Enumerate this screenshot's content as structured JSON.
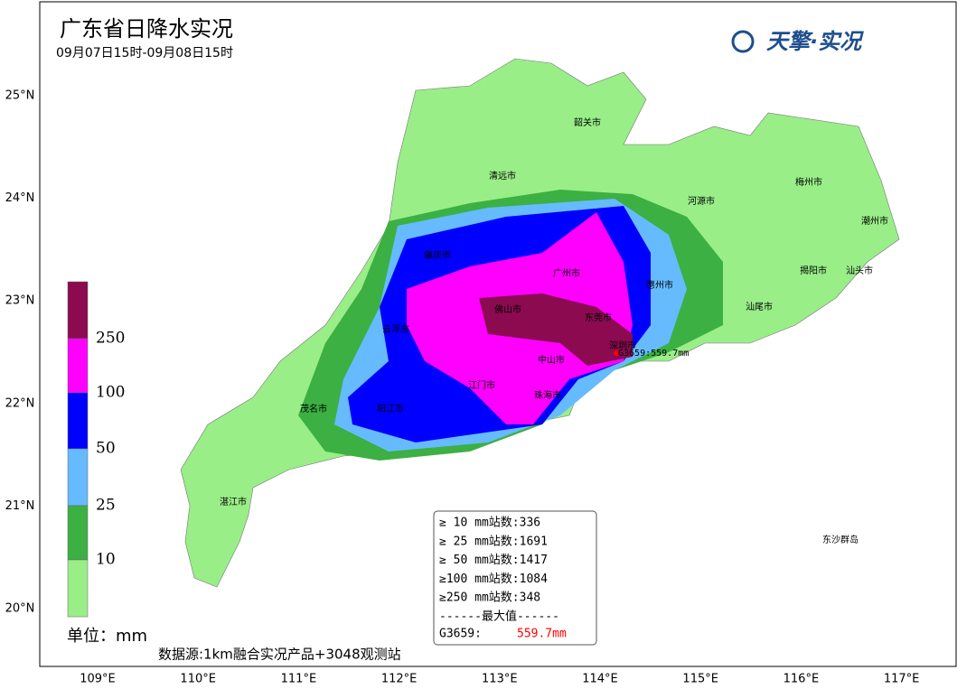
{
  "header": {
    "title": "广东省日降水实况",
    "subtitle": "09月07日15时-09月08日15时",
    "logo": "天擎·实况"
  },
  "lat_labels": [
    "25°N",
    "24°N",
    "23°N",
    "22°N",
    "21°N",
    "20°N"
  ],
  "lon_labels": [
    "109°E",
    "110°E",
    "111°E",
    "112°E",
    "113°E",
    "114°E",
    "115°E",
    "116°E",
    "117°E"
  ],
  "legend": {
    "levels": [
      "250",
      "100",
      "50",
      "25",
      "10"
    ],
    "unit": "单位：mm"
  },
  "cities": [
    "韶关市",
    "清远市",
    "河源市",
    "梅州市",
    "潮州市",
    "揭阳市",
    "汕头市",
    "汕尾市",
    "惠州市",
    "广州市",
    "东莞市",
    "肇庆市",
    "佛山市",
    "云浮市",
    "深圳市",
    "中山市",
    "江门市",
    "珠海市",
    "阳江市",
    "茂名市",
    "湛江市",
    "东沙群岛"
  ],
  "station_marker": "G3659:559.7mm",
  "stats": {
    "rows": [
      "≥ 10 mm站数:336",
      "≥ 25 mm站数:1691",
      "≥ 50 mm站数:1417",
      "≥100 mm站数:1084",
      "≥250 mm站数:348"
    ],
    "divider": "------最大值------",
    "max_station": "G3659:",
    "max_value": "559.7mm"
  },
  "source": "数据源:1km融合实况产品+3048观测站"
}
